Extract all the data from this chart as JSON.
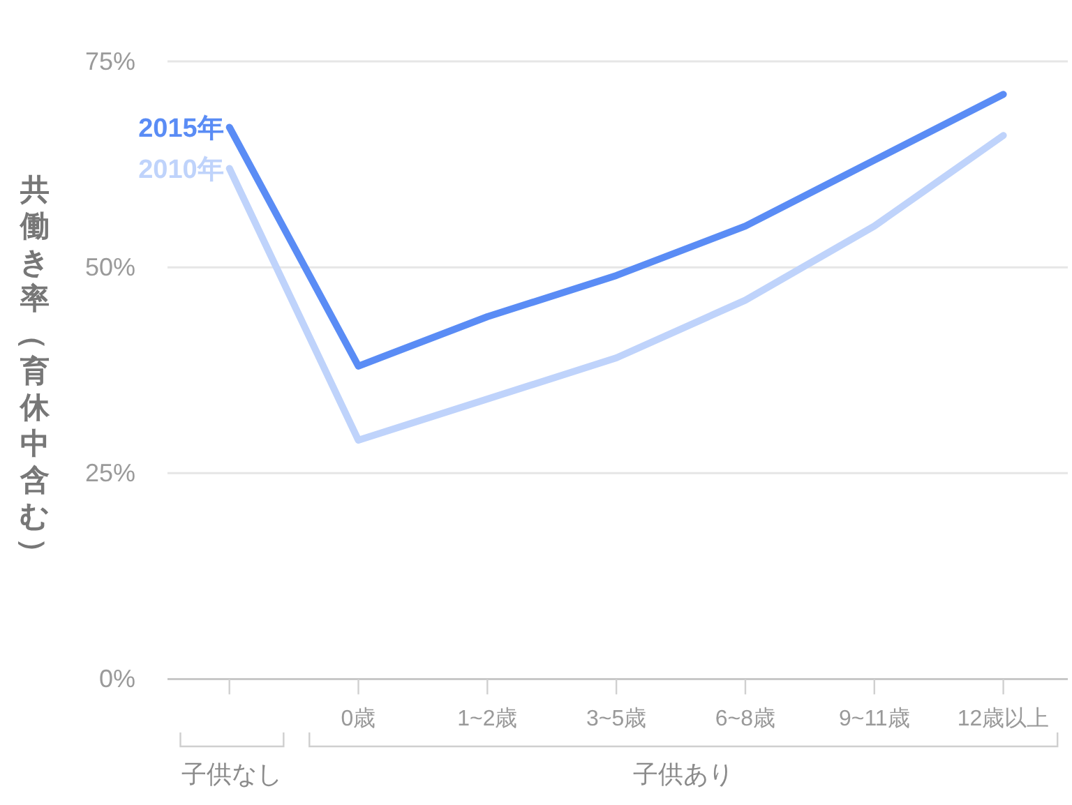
{
  "chart_data": {
    "type": "line",
    "ylabel": "共働き率（育休中含む）",
    "categories": [
      null,
      "0歳",
      "1~2歳",
      "3~5歳",
      "6~8歳",
      "9~11歳",
      "12歳以上"
    ],
    "ylim": [
      0,
      75
    ],
    "yticks": [
      {
        "value": 0,
        "label": "0%"
      },
      {
        "value": 25,
        "label": "25%"
      },
      {
        "value": 50,
        "label": "50%"
      },
      {
        "value": 75,
        "label": "75%"
      }
    ],
    "grid": "y",
    "series": [
      {
        "name": "2015年",
        "color": "#5a8cf5",
        "values": [
          67,
          38,
          44,
          49,
          55,
          63,
          71
        ]
      },
      {
        "name": "2010年",
        "color": "#bfd3fb",
        "values": [
          62,
          29,
          34,
          39,
          46,
          55,
          66
        ]
      }
    ],
    "annotations": [
      "子供なし",
      "子供あり"
    ]
  }
}
